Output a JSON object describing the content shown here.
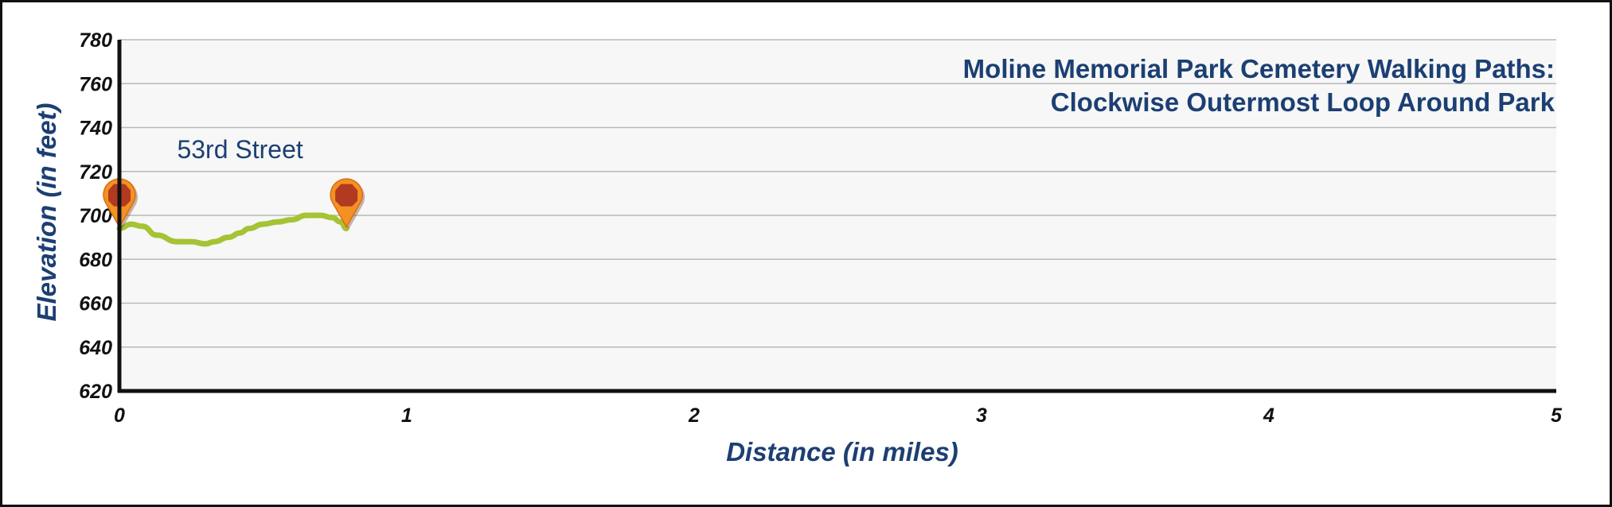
{
  "chart_data": {
    "type": "line",
    "title_lines": [
      "Moline Memorial Park Cemetery Walking Paths:",
      "Clockwise Outermost Loop Around Park"
    ],
    "xlabel": "Distance (in miles)",
    "ylabel": "Elevation (in feet)",
    "xlim": [
      0,
      5
    ],
    "ylim": [
      620,
      780
    ],
    "xticks": [
      0,
      1,
      2,
      3,
      4,
      5
    ],
    "yticks": [
      620,
      640,
      660,
      680,
      700,
      720,
      740,
      760,
      780
    ],
    "grid": "horizontal",
    "annotations": [
      {
        "text": "53rd Street",
        "x": 0.42,
        "y": 726
      }
    ],
    "markers": [
      {
        "name": "start-marker",
        "x": 0.0,
        "y": 694
      },
      {
        "name": "end-marker",
        "x": 0.79,
        "y": 694
      }
    ],
    "series": [
      {
        "color": "#a5c334",
        "x": [
          0.0,
          0.04,
          0.08,
          0.13,
          0.2,
          0.25,
          0.3,
          0.33,
          0.38,
          0.42,
          0.45,
          0.5,
          0.55,
          0.6,
          0.65,
          0.7,
          0.74,
          0.77,
          0.79
        ],
        "y": [
          694,
          696,
          695,
          691,
          688,
          688,
          687,
          688,
          690,
          692,
          694,
          696,
          697,
          698,
          700,
          700,
          699,
          697,
          694
        ]
      }
    ],
    "colors": {
      "plot_bg": "#f6f7f6",
      "grid": "#b9b9b9",
      "axis": "#111111",
      "text": "#1c3f73",
      "marker_outer": "#f39125",
      "marker_inner": "#b23a20"
    }
  }
}
